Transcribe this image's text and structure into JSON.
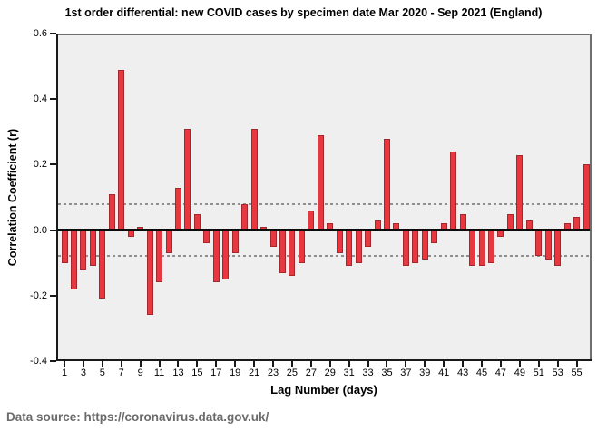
{
  "figure": {
    "title": "1st order differential: new COVID cases by specimen date Mar 2020 - Sep 2021 (England)",
    "footer": "Data source: https://coronavirus.data.gov.uk/"
  },
  "chart_data": {
    "type": "bar",
    "title": "1st order differential: new COVID cases by specimen date Mar 2020 - Sep 2021 (England)",
    "xlabel": "Lag Number (days)",
    "ylabel": "Correlation Coefficient (r)",
    "ylim": [
      -0.4,
      0.6
    ],
    "ytick_values": [
      0.6,
      0.4,
      0.2,
      0.0,
      -0.2,
      -0.4
    ],
    "ytick_labels": [
      "0.6",
      "0.4",
      "0.2",
      "0.0",
      "-0.2",
      "-0.4"
    ],
    "xtick_values": [
      1,
      3,
      5,
      7,
      9,
      11,
      13,
      15,
      17,
      19,
      21,
      23,
      25,
      27,
      29,
      31,
      33,
      35,
      37,
      39,
      41,
      43,
      45,
      47,
      49,
      51,
      53,
      55
    ],
    "lag_numbers": [
      1,
      2,
      3,
      4,
      5,
      6,
      7,
      8,
      9,
      10,
      11,
      12,
      13,
      14,
      15,
      16,
      17,
      18,
      19,
      20,
      21,
      22,
      23,
      24,
      25,
      26,
      27,
      28,
      29,
      30,
      31,
      32,
      33,
      34,
      35,
      36,
      37,
      38,
      39,
      40,
      41,
      42,
      43,
      44,
      45,
      46,
      47,
      48,
      49,
      50,
      51,
      52,
      53,
      54,
      55,
      56
    ],
    "values": [
      -0.1,
      -0.18,
      -0.12,
      -0.11,
      -0.21,
      0.11,
      0.49,
      -0.02,
      0.01,
      -0.26,
      -0.16,
      -0.07,
      0.13,
      0.31,
      0.05,
      -0.04,
      -0.16,
      -0.15,
      -0.07,
      0.08,
      0.31,
      0.01,
      -0.05,
      -0.13,
      -0.14,
      -0.1,
      0.06,
      0.29,
      0.02,
      -0.07,
      -0.11,
      -0.1,
      -0.05,
      0.03,
      0.28,
      0.02,
      -0.11,
      -0.1,
      -0.09,
      -0.04,
      0.02,
      0.24,
      0.05,
      -0.11,
      -0.11,
      -0.1,
      -0.02,
      0.05,
      0.23,
      0.03,
      -0.08,
      -0.09,
      -0.11,
      0.02,
      0.04,
      0.2
    ],
    "confidence_limit_upper": 0.08,
    "confidence_limit_lower": -0.08,
    "grid": false,
    "legend": null,
    "bar_fill": "#e8373e",
    "bar_border": "#a2282e",
    "plot_bg": "#efefef",
    "conf_line_color": "#8f8f8f",
    "zero_line_color": "#0c0c0c",
    "footer_color": "#6b6b6b"
  }
}
